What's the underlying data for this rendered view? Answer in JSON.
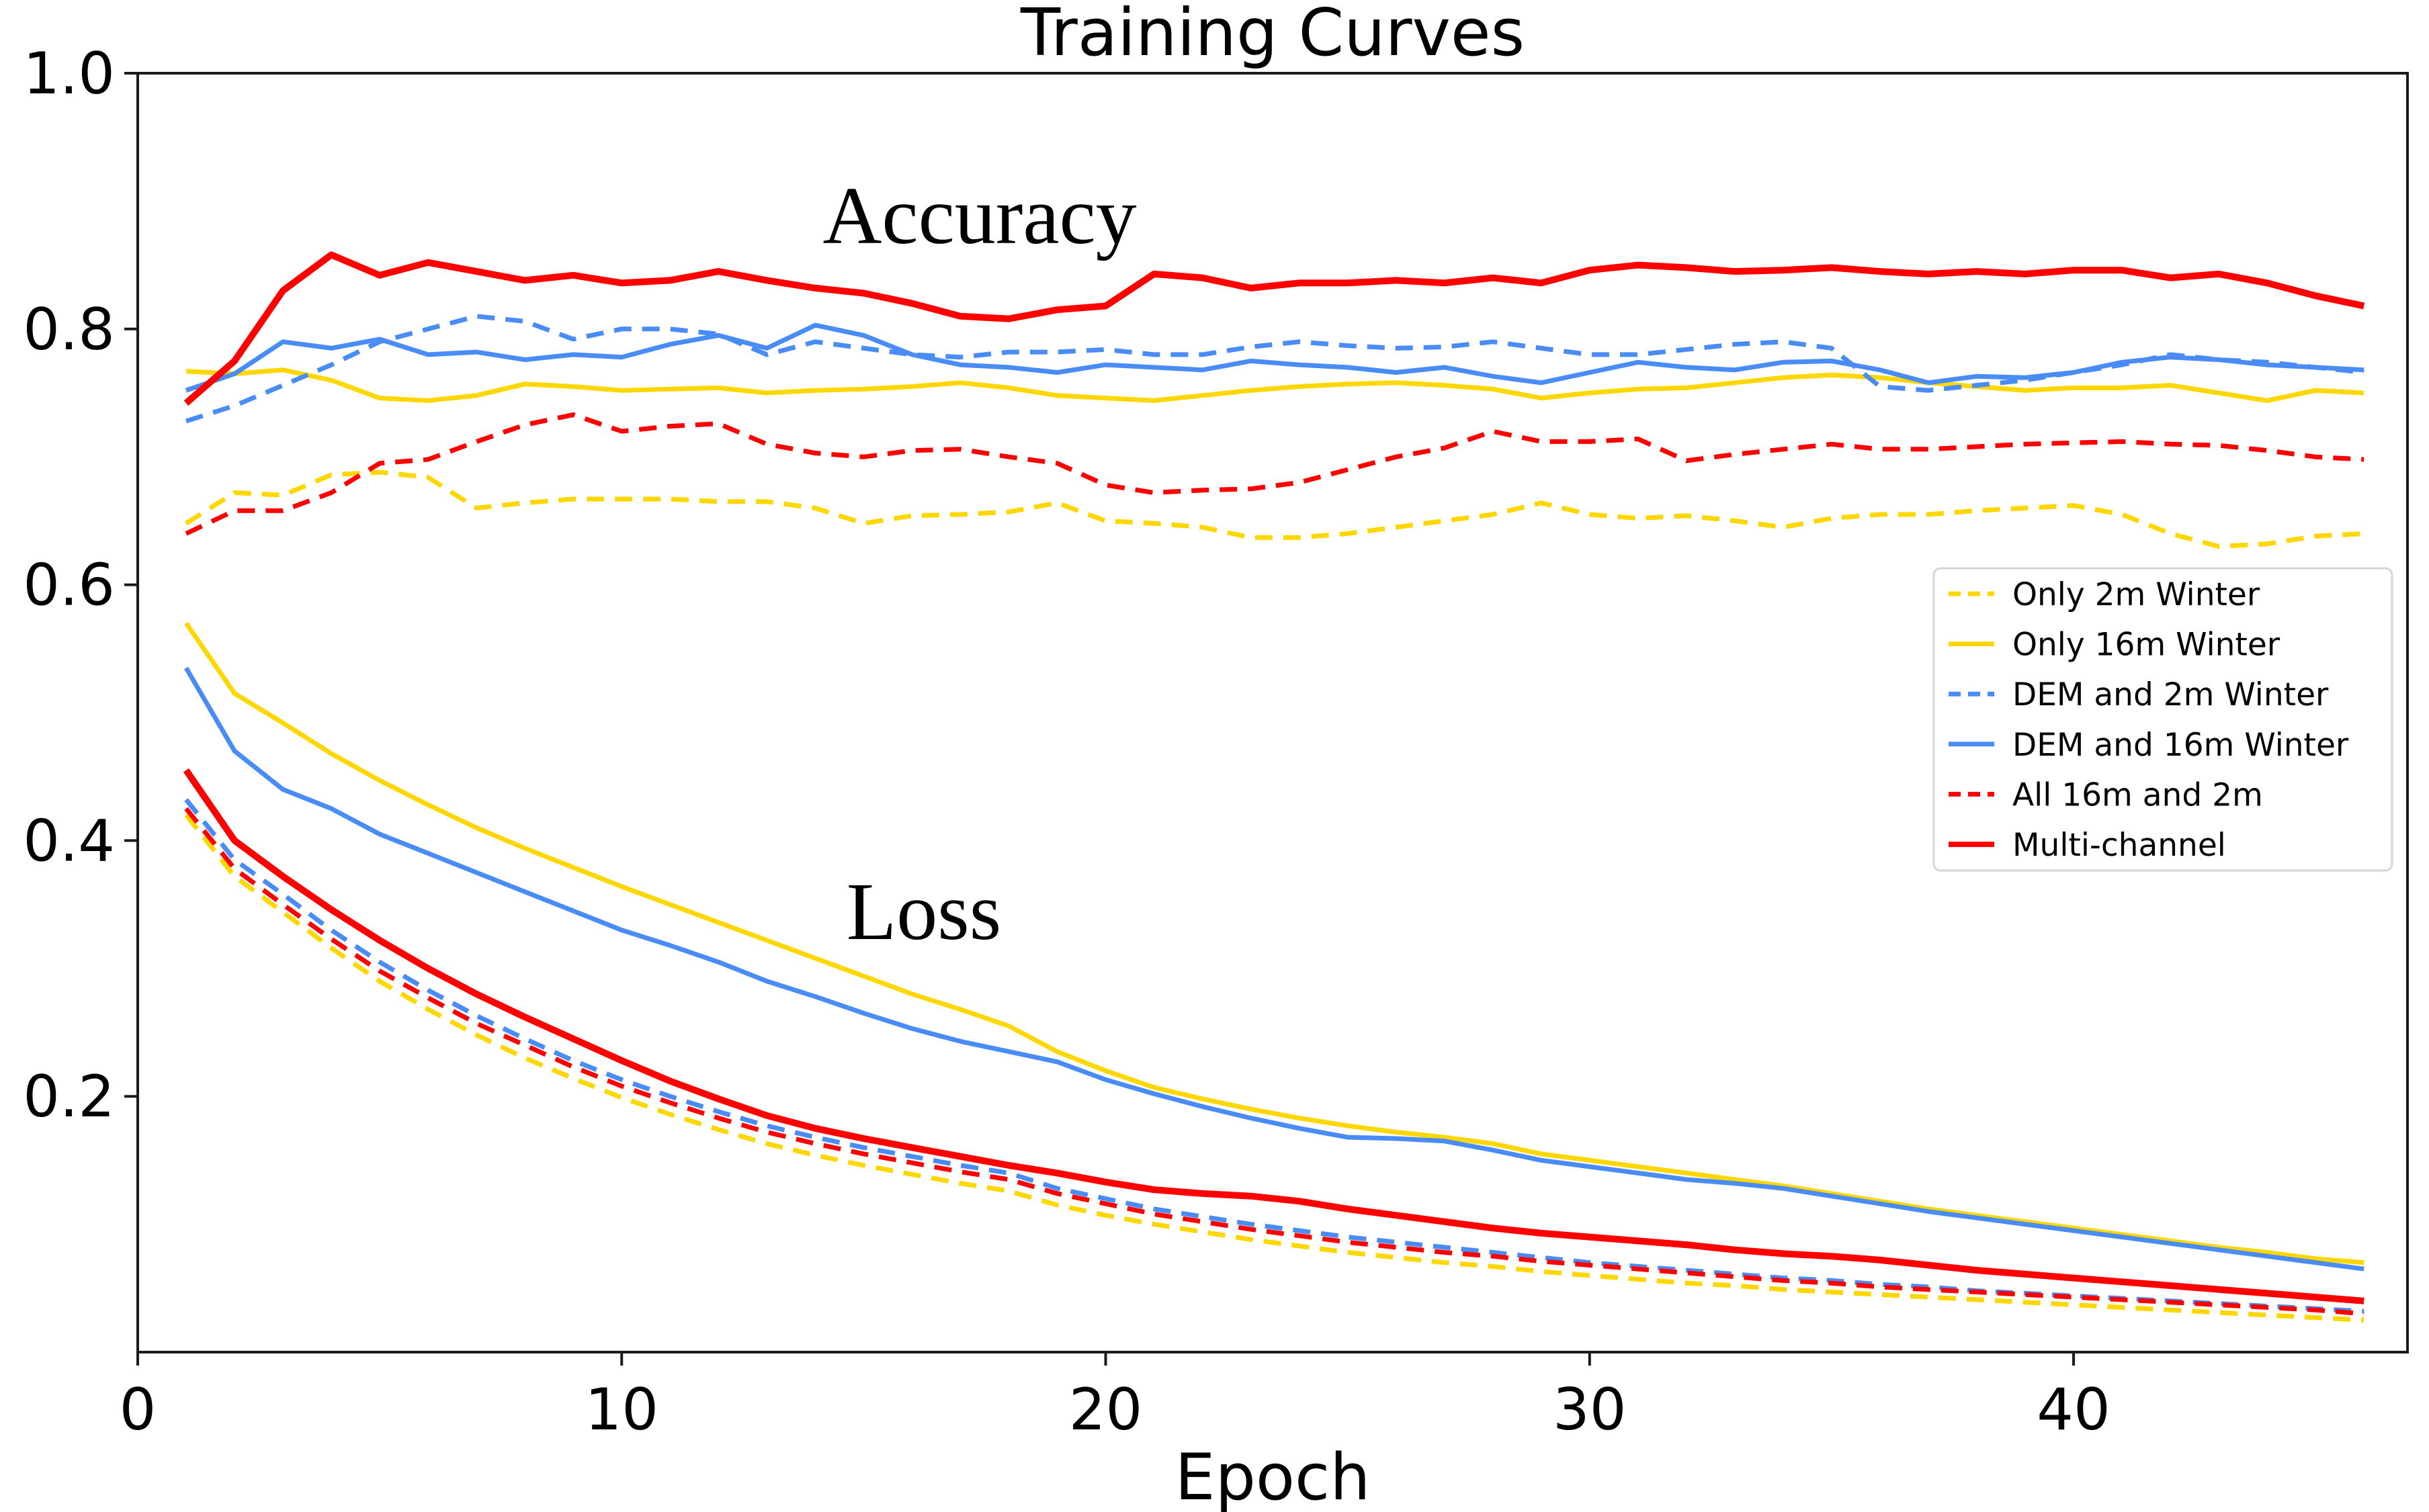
{
  "annotations": {
    "accuracy": "Accuracy",
    "loss": "Loss"
  },
  "colors": {
    "gold": "#FFD700",
    "blue": "#4A8CF5",
    "red": "#FF0000",
    "spine": "#1a1a1a",
    "legend_border": "#d5d5d5",
    "text": "#000000",
    "background": "#ffffff"
  },
  "legend": {
    "position": "right",
    "items": [
      "Only 2m Winter",
      "Only 16m Winter",
      "DEM and 2m Winter",
      "DEM and 16m Winter",
      "All 16m and 2m",
      "Multi-channel"
    ]
  },
  "chart_data": {
    "type": "line",
    "title": "Training Curves",
    "xlabel": "Epoch",
    "ylabel": "",
    "grid": false,
    "xlim": [
      0,
      46.9
    ],
    "ylim": [
      0,
      1.0
    ],
    "x_ticks": [
      0,
      10,
      20,
      30,
      40
    ],
    "y_ticks": [
      0.2,
      0.4,
      0.6,
      0.8,
      1.0
    ],
    "y_tick_labels": [
      "0.2",
      "0.4",
      "0.6",
      "0.8",
      "1.0"
    ],
    "epochs": [
      1,
      2,
      3,
      4,
      5,
      6,
      7,
      8,
      9,
      10,
      11,
      12,
      13,
      14,
      15,
      16,
      17,
      18,
      19,
      20,
      21,
      22,
      23,
      24,
      25,
      26,
      27,
      28,
      29,
      30,
      31,
      32,
      33,
      34,
      35,
      36,
      37,
      38,
      39,
      40,
      41,
      42,
      43,
      44,
      45,
      46
    ],
    "series_meta": [
      {
        "name": "Only 2m Winter",
        "color": "#FFD700",
        "style": "dashed",
        "width": 7
      },
      {
        "name": "Only 16m Winter",
        "color": "#FFD700",
        "style": "solid",
        "width": 7
      },
      {
        "name": "DEM and 2m Winter",
        "color": "#4A8CF5",
        "style": "dashed",
        "width": 7
      },
      {
        "name": "DEM and 16m Winter",
        "color": "#4A8CF5",
        "style": "solid",
        "width": 7
      },
      {
        "name": "All 16m and 2m",
        "color": "#FF0000",
        "style": "dashed",
        "width": 7
      },
      {
        "name": "Multi-channel",
        "color": "#FF0000",
        "style": "solid",
        "width": 10
      }
    ],
    "accuracy_series": [
      {
        "name": "Only 2m Winter",
        "values": [
          0.648,
          0.672,
          0.67,
          0.686,
          0.688,
          0.684,
          0.66,
          0.664,
          0.667,
          0.667,
          0.667,
          0.665,
          0.665,
          0.66,
          0.648,
          0.654,
          0.655,
          0.657,
          0.664,
          0.65,
          0.648,
          0.645,
          0.637,
          0.637,
          0.64,
          0.645,
          0.65,
          0.655,
          0.664,
          0.655,
          0.652,
          0.654,
          0.65,
          0.645,
          0.652,
          0.655,
          0.655,
          0.658,
          0.66,
          0.662,
          0.655,
          0.64,
          0.63,
          0.632,
          0.638,
          0.64
        ]
      },
      {
        "name": "Only 16m Winter",
        "values": [
          0.767,
          0.765,
          0.768,
          0.76,
          0.746,
          0.744,
          0.748,
          0.757,
          0.755,
          0.752,
          0.753,
          0.754,
          0.75,
          0.752,
          0.753,
          0.755,
          0.758,
          0.754,
          0.748,
          0.746,
          0.744,
          0.748,
          0.752,
          0.755,
          0.757,
          0.758,
          0.756,
          0.753,
          0.746,
          0.75,
          0.753,
          0.754,
          0.758,
          0.762,
          0.764,
          0.762,
          0.758,
          0.755,
          0.752,
          0.754,
          0.754,
          0.756,
          0.75,
          0.744,
          0.752,
          0.75
        ]
      },
      {
        "name": "DEM and 2m Winter",
        "values": [
          0.728,
          0.74,
          0.756,
          0.772,
          0.79,
          0.8,
          0.81,
          0.806,
          0.792,
          0.8,
          0.8,
          0.796,
          0.78,
          0.79,
          0.785,
          0.78,
          0.778,
          0.782,
          0.782,
          0.784,
          0.78,
          0.78,
          0.786,
          0.79,
          0.787,
          0.785,
          0.786,
          0.79,
          0.785,
          0.78,
          0.78,
          0.784,
          0.788,
          0.79,
          0.785,
          0.755,
          0.752,
          0.756,
          0.76,
          0.766,
          0.772,
          0.78,
          0.776,
          0.774,
          0.77,
          0.766
        ]
      },
      {
        "name": "DEM and 16m Winter",
        "values": [
          0.752,
          0.765,
          0.79,
          0.785,
          0.792,
          0.78,
          0.782,
          0.776,
          0.78,
          0.778,
          0.788,
          0.795,
          0.785,
          0.803,
          0.795,
          0.78,
          0.772,
          0.77,
          0.766,
          0.772,
          0.77,
          0.768,
          0.775,
          0.772,
          0.77,
          0.766,
          0.77,
          0.763,
          0.758,
          0.766,
          0.774,
          0.77,
          0.768,
          0.774,
          0.775,
          0.768,
          0.758,
          0.763,
          0.762,
          0.766,
          0.774,
          0.778,
          0.776,
          0.772,
          0.77,
          0.768
        ]
      },
      {
        "name": "All 16m and 2m",
        "values": [
          0.64,
          0.658,
          0.658,
          0.672,
          0.695,
          0.698,
          0.712,
          0.725,
          0.733,
          0.72,
          0.724,
          0.726,
          0.71,
          0.703,
          0.7,
          0.705,
          0.706,
          0.7,
          0.695,
          0.678,
          0.672,
          0.674,
          0.675,
          0.68,
          0.69,
          0.7,
          0.707,
          0.72,
          0.712,
          0.712,
          0.714,
          0.697,
          0.702,
          0.706,
          0.71,
          0.706,
          0.706,
          0.708,
          0.71,
          0.711,
          0.712,
          0.71,
          0.709,
          0.705,
          0.7,
          0.698
        ]
      },
      {
        "name": "Multi-channel",
        "values": [
          0.742,
          0.775,
          0.83,
          0.858,
          0.842,
          0.852,
          0.845,
          0.838,
          0.842,
          0.836,
          0.838,
          0.845,
          0.838,
          0.832,
          0.828,
          0.82,
          0.81,
          0.808,
          0.815,
          0.818,
          0.843,
          0.84,
          0.832,
          0.836,
          0.836,
          0.838,
          0.836,
          0.84,
          0.836,
          0.846,
          0.85,
          0.848,
          0.845,
          0.846,
          0.848,
          0.845,
          0.843,
          0.845,
          0.843,
          0.846,
          0.846,
          0.84,
          0.843,
          0.836,
          0.826,
          0.818
        ]
      }
    ],
    "loss_series": [
      {
        "name": "Only 2m Winter",
        "values": [
          0.42,
          0.372,
          0.344,
          0.316,
          0.29,
          0.268,
          0.248,
          0.23,
          0.214,
          0.199,
          0.186,
          0.174,
          0.163,
          0.154,
          0.146,
          0.139,
          0.132,
          0.126,
          0.115,
          0.107,
          0.1,
          0.094,
          0.088,
          0.083,
          0.078,
          0.074,
          0.07,
          0.067,
          0.063,
          0.06,
          0.057,
          0.054,
          0.052,
          0.049,
          0.047,
          0.045,
          0.043,
          0.041,
          0.039,
          0.037,
          0.035,
          0.033,
          0.031,
          0.029,
          0.027,
          0.025
        ]
      },
      {
        "name": "Only 16m Winter",
        "values": [
          0.57,
          0.515,
          0.492,
          0.468,
          0.447,
          0.428,
          0.41,
          0.394,
          0.379,
          0.364,
          0.35,
          0.336,
          0.322,
          0.308,
          0.294,
          0.28,
          0.268,
          0.255,
          0.235,
          0.22,
          0.207,
          0.198,
          0.19,
          0.183,
          0.177,
          0.172,
          0.168,
          0.163,
          0.155,
          0.15,
          0.145,
          0.14,
          0.135,
          0.13,
          0.124,
          0.118,
          0.112,
          0.107,
          0.102,
          0.097,
          0.092,
          0.087,
          0.082,
          0.078,
          0.073,
          0.07
        ]
      },
      {
        "name": "DEM and 2m Winter",
        "values": [
          0.432,
          0.385,
          0.358,
          0.33,
          0.305,
          0.283,
          0.263,
          0.245,
          0.228,
          0.213,
          0.2,
          0.188,
          0.177,
          0.168,
          0.16,
          0.153,
          0.146,
          0.14,
          0.128,
          0.12,
          0.112,
          0.106,
          0.1,
          0.095,
          0.09,
          0.086,
          0.082,
          0.078,
          0.074,
          0.07,
          0.067,
          0.064,
          0.061,
          0.058,
          0.056,
          0.053,
          0.051,
          0.048,
          0.046,
          0.044,
          0.042,
          0.04,
          0.038,
          0.036,
          0.034,
          0.032
        ]
      },
      {
        "name": "DEM and 16m Winter",
        "values": [
          0.535,
          0.47,
          0.44,
          0.425,
          0.405,
          0.39,
          0.375,
          0.36,
          0.345,
          0.33,
          0.318,
          0.305,
          0.29,
          0.278,
          0.265,
          0.253,
          0.243,
          0.235,
          0.227,
          0.213,
          0.202,
          0.192,
          0.183,
          0.175,
          0.168,
          0.167,
          0.165,
          0.158,
          0.15,
          0.145,
          0.14,
          0.135,
          0.132,
          0.128,
          0.122,
          0.116,
          0.11,
          0.105,
          0.1,
          0.095,
          0.09,
          0.085,
          0.08,
          0.075,
          0.07,
          0.065
        ]
      },
      {
        "name": "All 16m and 2m",
        "values": [
          0.425,
          0.378,
          0.35,
          0.323,
          0.298,
          0.277,
          0.257,
          0.24,
          0.223,
          0.208,
          0.195,
          0.183,
          0.172,
          0.163,
          0.155,
          0.148,
          0.141,
          0.135,
          0.124,
          0.116,
          0.108,
          0.102,
          0.096,
          0.091,
          0.086,
          0.082,
          0.078,
          0.075,
          0.071,
          0.068,
          0.065,
          0.062,
          0.059,
          0.056,
          0.054,
          0.051,
          0.049,
          0.047,
          0.045,
          0.043,
          0.041,
          0.039,
          0.037,
          0.035,
          0.033,
          0.03
        ]
      },
      {
        "name": "Multi-channel",
        "values": [
          0.455,
          0.4,
          0.372,
          0.346,
          0.322,
          0.3,
          0.28,
          0.262,
          0.245,
          0.228,
          0.212,
          0.198,
          0.185,
          0.175,
          0.167,
          0.16,
          0.153,
          0.146,
          0.14,
          0.133,
          0.127,
          0.124,
          0.122,
          0.118,
          0.112,
          0.107,
          0.102,
          0.097,
          0.093,
          0.09,
          0.087,
          0.084,
          0.08,
          0.077,
          0.075,
          0.072,
          0.068,
          0.064,
          0.061,
          0.058,
          0.055,
          0.052,
          0.049,
          0.046,
          0.043,
          0.04
        ]
      }
    ]
  }
}
